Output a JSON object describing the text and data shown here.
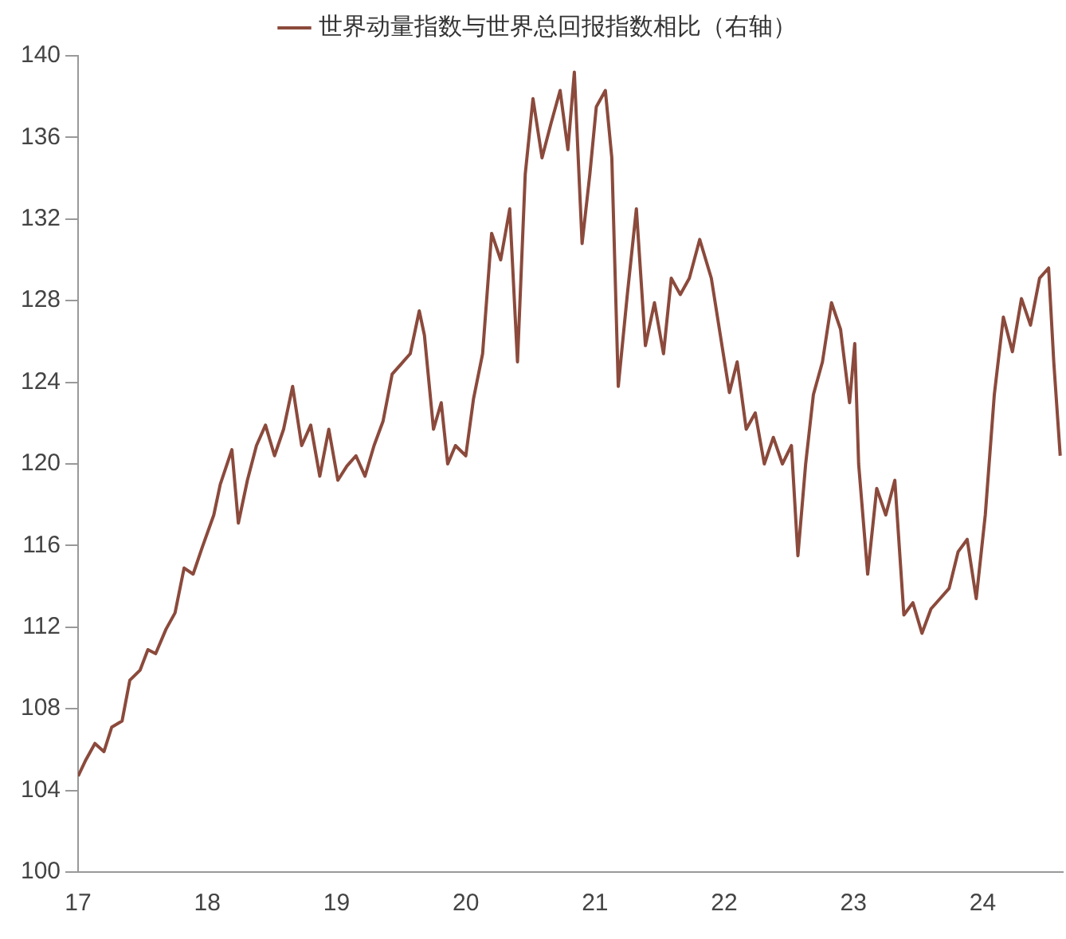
{
  "chart_data": {
    "type": "line",
    "legend": "top",
    "grid": false,
    "marker": "none",
    "line_style": "solid",
    "xlim": [
      17,
      24.62
    ],
    "xticks": [
      17,
      18,
      19,
      20,
      21,
      22,
      23,
      24
    ],
    "ylim": [
      100,
      140
    ],
    "yticks": [
      100,
      104,
      108,
      112,
      116,
      120,
      124,
      128,
      132,
      136,
      140
    ],
    "series": [
      {
        "name": "世界动量指数与世界总回报指数相比（右轴）",
        "color": "#8b4a3c",
        "x": [
          17.0,
          17.06,
          17.13,
          17.2,
          17.26,
          17.34,
          17.4,
          17.48,
          17.54,
          17.6,
          17.68,
          17.75,
          17.82,
          17.89,
          17.96,
          18.05,
          18.1,
          18.19,
          18.24,
          18.31,
          18.38,
          18.45,
          18.52,
          18.59,
          18.66,
          18.73,
          18.8,
          18.87,
          18.94,
          19.01,
          19.08,
          19.15,
          19.22,
          19.29,
          19.36,
          19.43,
          19.5,
          19.57,
          19.64,
          19.68,
          19.75,
          19.81,
          19.86,
          19.92,
          20.0,
          20.06,
          20.13,
          20.2,
          20.27,
          20.34,
          20.4,
          20.46,
          20.52,
          20.59,
          20.66,
          20.73,
          20.79,
          20.84,
          20.9,
          20.96,
          21.01,
          21.08,
          21.13,
          21.18,
          21.25,
          21.32,
          21.39,
          21.46,
          21.53,
          21.59,
          21.66,
          21.73,
          21.81,
          21.9,
          21.97,
          22.04,
          22.1,
          22.17,
          22.24,
          22.31,
          22.38,
          22.45,
          22.52,
          22.57,
          22.63,
          22.69,
          22.76,
          22.83,
          22.9,
          22.97,
          23.01,
          23.04,
          23.11,
          23.18,
          23.25,
          23.32,
          23.39,
          23.46,
          23.53,
          23.6,
          23.67,
          23.74,
          23.81,
          23.88,
          23.95,
          24.02,
          24.09,
          24.16,
          24.23,
          24.3,
          24.37,
          24.44,
          24.51,
          24.55,
          24.6
        ],
        "values": [
          104.7,
          105.5,
          106.3,
          105.9,
          107.1,
          107.4,
          109.4,
          109.9,
          110.9,
          110.7,
          111.9,
          112.7,
          114.9,
          114.6,
          115.9,
          117.5,
          119.0,
          120.7,
          117.1,
          119.2,
          120.9,
          121.9,
          120.4,
          121.7,
          123.8,
          120.9,
          121.9,
          119.4,
          121.7,
          119.2,
          119.9,
          120.4,
          119.4,
          120.9,
          122.1,
          124.4,
          124.9,
          125.4,
          127.5,
          126.3,
          121.7,
          123.0,
          120.0,
          120.9,
          120.4,
          123.2,
          125.4,
          131.3,
          130.0,
          132.5,
          125.0,
          134.2,
          137.9,
          135.0,
          136.7,
          138.3,
          135.4,
          139.2,
          130.8,
          134.2,
          137.5,
          138.3,
          135.0,
          123.8,
          128.3,
          132.5,
          125.8,
          127.9,
          125.4,
          129.1,
          128.3,
          129.1,
          131.0,
          129.1,
          126.3,
          123.5,
          125.0,
          121.7,
          122.5,
          120.0,
          121.3,
          120.0,
          120.9,
          115.5,
          120.0,
          123.4,
          125.0,
          127.9,
          126.6,
          123.0,
          125.9,
          120.0,
          114.6,
          118.8,
          117.5,
          119.2,
          112.6,
          113.2,
          111.7,
          112.9,
          113.4,
          113.9,
          115.7,
          116.3,
          113.4,
          117.5,
          123.4,
          127.2,
          125.5,
          128.1,
          126.8,
          129.1,
          129.6,
          125.0,
          120.4
        ]
      }
    ]
  }
}
